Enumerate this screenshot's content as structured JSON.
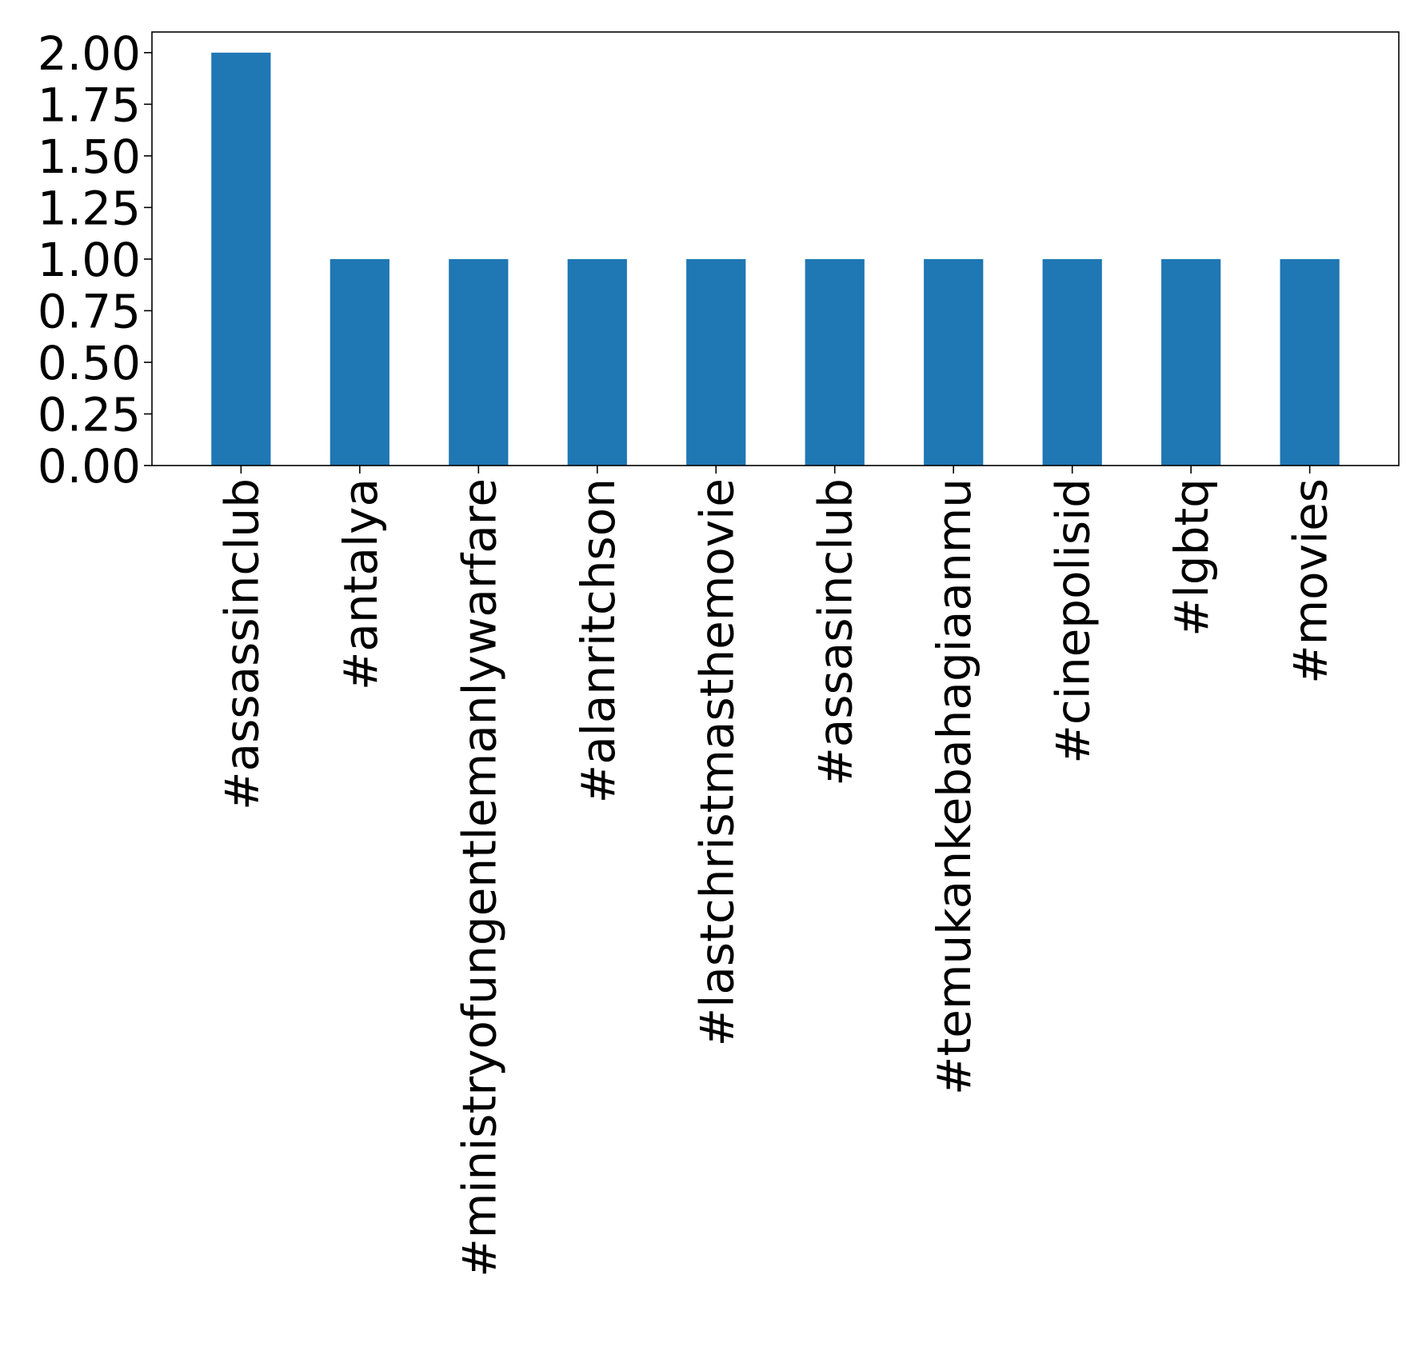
{
  "chart_data": {
    "type": "bar",
    "categories": [
      "#assassinclub",
      "#antalya",
      "#ministryofungentlemanlywarfare",
      "#alanritchson",
      "#lastchristmasthemovie",
      "#assasinclub",
      "#temukankebahagiaanmu",
      "#cinepolisid",
      "#lgbtq",
      "#movies"
    ],
    "values": [
      2,
      1,
      1,
      1,
      1,
      1,
      1,
      1,
      1,
      1
    ],
    "title": "",
    "xlabel": "",
    "ylabel": "",
    "ylim": [
      0,
      2.1
    ],
    "yticks": [
      "0.00",
      "0.25",
      "0.50",
      "0.75",
      "1.00",
      "1.25",
      "1.50",
      "1.75",
      "2.00"
    ],
    "grid": false,
    "bar_color": "#1f77b4"
  }
}
